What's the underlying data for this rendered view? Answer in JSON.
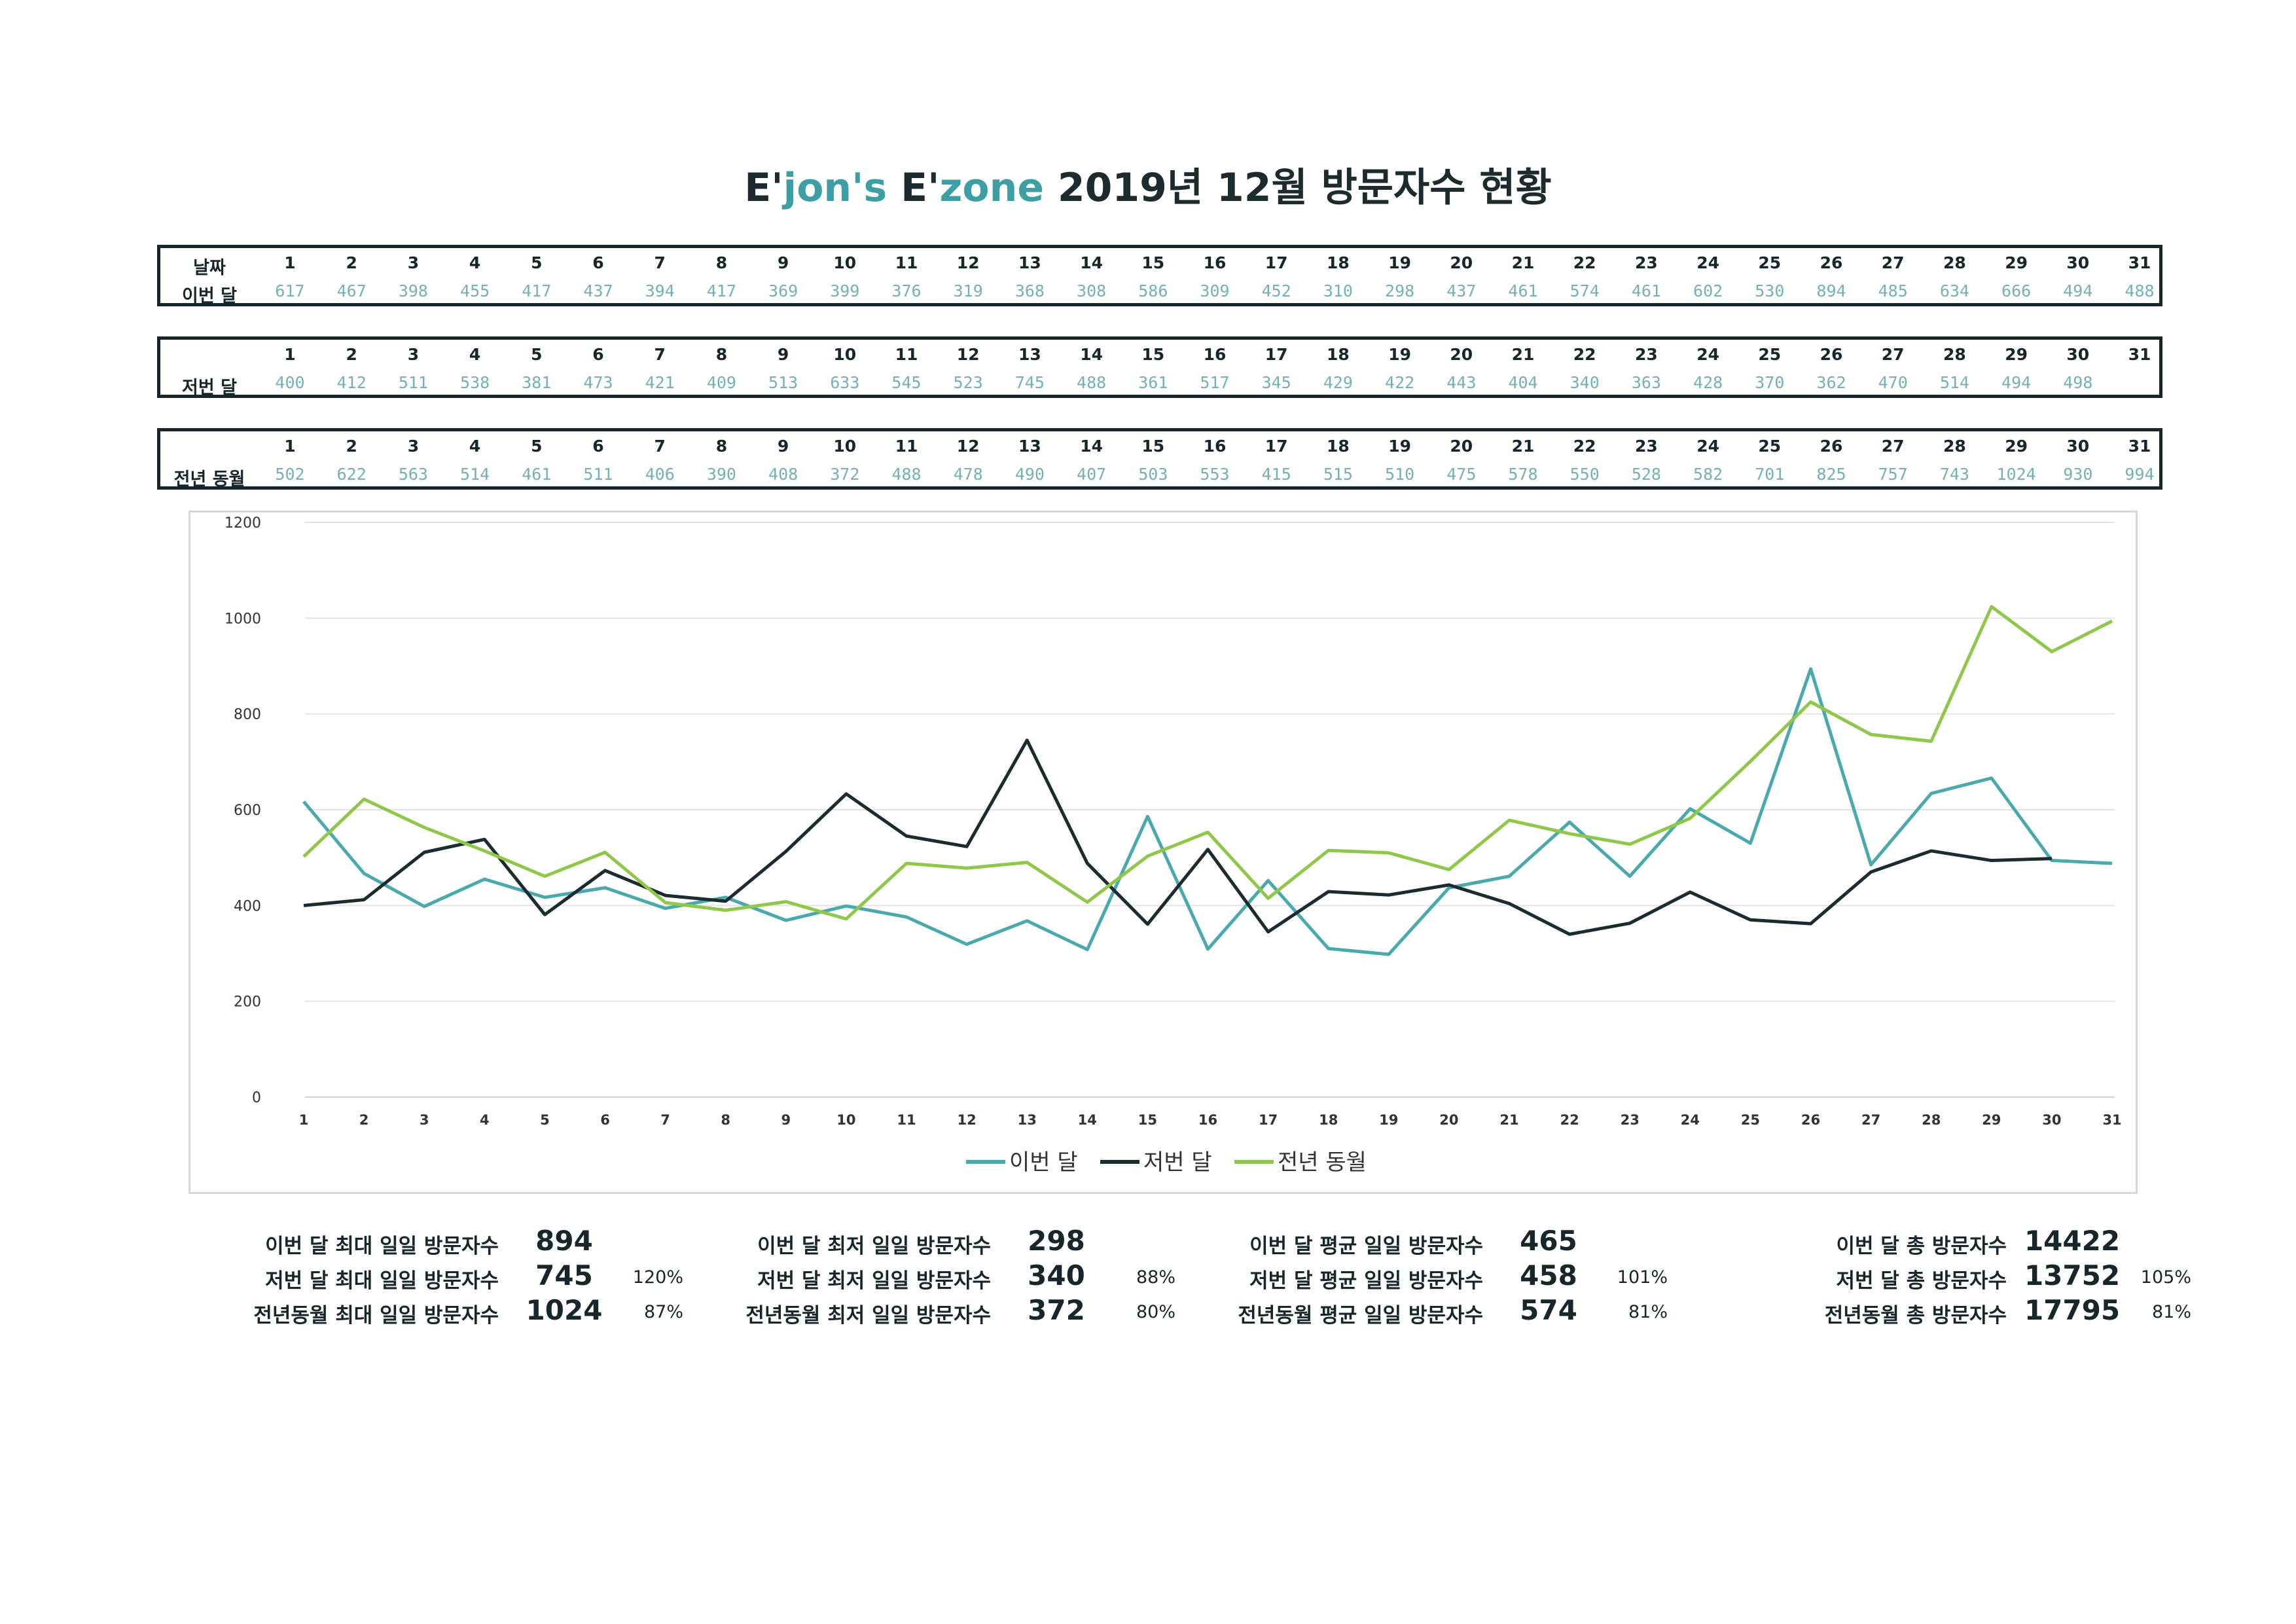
{
  "title": {
    "p1": "E'",
    "p2": "jon's",
    "p3": " E'",
    "p4": "zone",
    "p5": " 2019년 12월 방문자수 현황"
  },
  "colors": {
    "this_month": "#4aa9ad",
    "last_month": "#1a2c30",
    "last_year": "#8fc74a"
  },
  "tables": [
    {
      "row_label_days": "날짜",
      "row_label_values": "이번 달",
      "days": [
        "1",
        "2",
        "3",
        "4",
        "5",
        "6",
        "7",
        "8",
        "9",
        "10",
        "11",
        "12",
        "13",
        "14",
        "15",
        "16",
        "17",
        "18",
        "19",
        "20",
        "21",
        "22",
        "23",
        "24",
        "25",
        "26",
        "27",
        "28",
        "29",
        "30",
        "31"
      ],
      "values": [
        "617",
        "467",
        "398",
        "455",
        "417",
        "437",
        "394",
        "417",
        "369",
        "399",
        "376",
        "319",
        "368",
        "308",
        "586",
        "309",
        "452",
        "310",
        "298",
        "437",
        "461",
        "574",
        "461",
        "602",
        "530",
        "894",
        "485",
        "634",
        "666",
        "494",
        "488"
      ]
    },
    {
      "row_label_days": "",
      "row_label_values": "저번 달",
      "days": [
        "1",
        "2",
        "3",
        "4",
        "5",
        "6",
        "7",
        "8",
        "9",
        "10",
        "11",
        "12",
        "13",
        "14",
        "15",
        "16",
        "17",
        "18",
        "19",
        "20",
        "21",
        "22",
        "23",
        "24",
        "25",
        "26",
        "27",
        "28",
        "29",
        "30",
        "31"
      ],
      "values": [
        "400",
        "412",
        "511",
        "538",
        "381",
        "473",
        "421",
        "409",
        "513",
        "633",
        "545",
        "523",
        "745",
        "488",
        "361",
        "517",
        "345",
        "429",
        "422",
        "443",
        "404",
        "340",
        "363",
        "428",
        "370",
        "362",
        "470",
        "514",
        "494",
        "498",
        ""
      ]
    },
    {
      "row_label_days": "",
      "row_label_values": "전년 동월",
      "days": [
        "1",
        "2",
        "3",
        "4",
        "5",
        "6",
        "7",
        "8",
        "9",
        "10",
        "11",
        "12",
        "13",
        "14",
        "15",
        "16",
        "17",
        "18",
        "19",
        "20",
        "21",
        "22",
        "23",
        "24",
        "25",
        "26",
        "27",
        "28",
        "29",
        "30",
        "31"
      ],
      "values": [
        "502",
        "622",
        "563",
        "514",
        "461",
        "511",
        "406",
        "390",
        "408",
        "372",
        "488",
        "478",
        "490",
        "407",
        "503",
        "553",
        "415",
        "515",
        "510",
        "475",
        "578",
        "550",
        "528",
        "582",
        "701",
        "825",
        "757",
        "743",
        "1024",
        "930",
        "994"
      ]
    }
  ],
  "chart_data": {
    "type": "line",
    "x": [
      1,
      2,
      3,
      4,
      5,
      6,
      7,
      8,
      9,
      10,
      11,
      12,
      13,
      14,
      15,
      16,
      17,
      18,
      19,
      20,
      21,
      22,
      23,
      24,
      25,
      26,
      27,
      28,
      29,
      30,
      31
    ],
    "ylim": [
      0,
      1200
    ],
    "yticks": [
      0,
      200,
      400,
      600,
      800,
      1000,
      1200
    ],
    "grid": true,
    "legend_position": "bottom",
    "series": [
      {
        "name": "이번 달",
        "values": [
          617,
          467,
          398,
          455,
          417,
          437,
          394,
          417,
          369,
          399,
          376,
          319,
          368,
          308,
          586,
          309,
          452,
          310,
          298,
          437,
          461,
          574,
          461,
          602,
          530,
          894,
          485,
          634,
          666,
          494,
          488
        ]
      },
      {
        "name": "저번 달",
        "values": [
          400,
          412,
          511,
          538,
          381,
          473,
          421,
          409,
          513,
          633,
          545,
          523,
          745,
          488,
          361,
          517,
          345,
          429,
          422,
          443,
          404,
          340,
          363,
          428,
          370,
          362,
          470,
          514,
          494,
          498,
          null
        ]
      },
      {
        "name": "전년 동월",
        "values": [
          502,
          622,
          563,
          514,
          461,
          511,
          406,
          390,
          408,
          372,
          488,
          478,
          490,
          407,
          503,
          553,
          415,
          515,
          510,
          475,
          578,
          550,
          528,
          582,
          701,
          825,
          757,
          743,
          1024,
          930,
          994
        ]
      }
    ]
  },
  "stats": [
    {
      "rows": [
        {
          "label": "이번 달 최대 일일 방문자수",
          "value": "894",
          "pct": ""
        },
        {
          "label": "저번 달 최대 일일 방문자수",
          "value": "745",
          "pct": "120%"
        },
        {
          "label": "전년동월 최대 일일 방문자수",
          "value": "1024",
          "pct": "87%"
        }
      ]
    },
    {
      "rows": [
        {
          "label": "이번 달 최저 일일 방문자수",
          "value": "298",
          "pct": ""
        },
        {
          "label": "저번 달 최저 일일 방문자수",
          "value": "340",
          "pct": "88%"
        },
        {
          "label": "전년동월 최저 일일 방문자수",
          "value": "372",
          "pct": "80%"
        }
      ]
    },
    {
      "rows": [
        {
          "label": "이번 달 평균 일일 방문자수",
          "value": "465",
          "pct": ""
        },
        {
          "label": "저번 달 평균 일일 방문자수",
          "value": "458",
          "pct": "101%"
        },
        {
          "label": "전년동월 평균 일일 방문자수",
          "value": "574",
          "pct": "81%"
        }
      ]
    },
    {
      "rows": [
        {
          "label": "이번 달 총 방문자수",
          "value": "14422",
          "pct": ""
        },
        {
          "label": "저번 달 총 방문자수",
          "value": "13752",
          "pct": "105%"
        },
        {
          "label": "전년동월 총 방문자수",
          "value": "17795",
          "pct": "81%"
        }
      ]
    }
  ]
}
